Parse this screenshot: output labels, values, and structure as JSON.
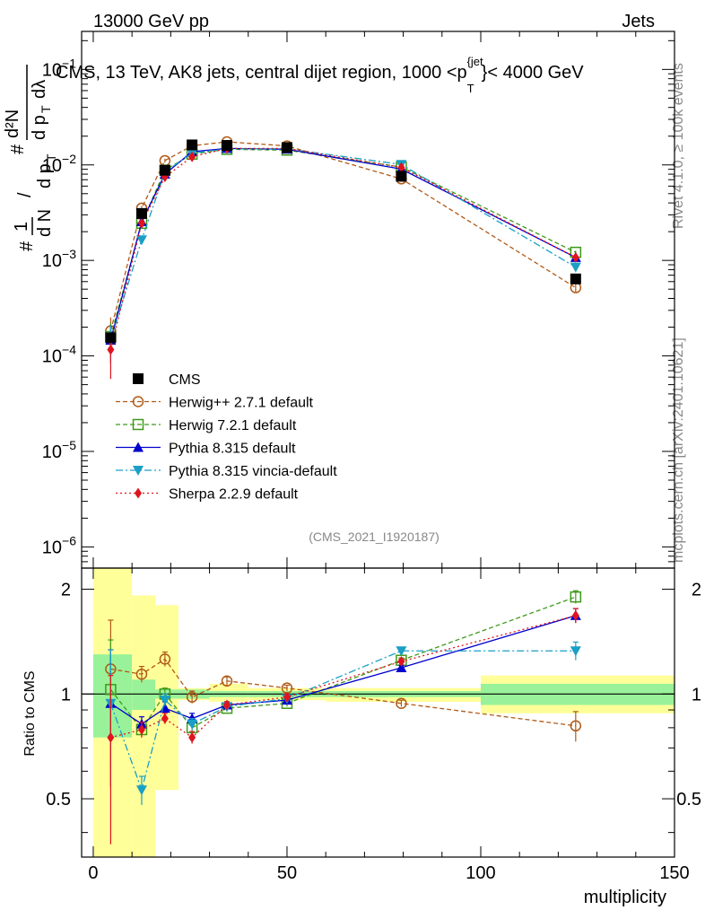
{
  "header": {
    "energy": "13000 GeV pp",
    "process": "Jets"
  },
  "side": {
    "rivet": "Rivet 4.1.0, ≥ 100k events",
    "mcplots": "mcplots.cern.ch [arXiv:2401.10621]"
  },
  "analysis_id": "(CMS_2021_I1920187)",
  "chart_data": {
    "type": "line",
    "title": "CMS, 13 TeV, AK8 jets, central dijet region, 1000 <p_T^{jet}< 4000 GeV",
    "title_parts": {
      "main": "CMS, 13 TeV, AK8 jets, central dijet region, 1000 <p",
      "sub": "T",
      "sup": "{jet",
      "tail": "}< 4000 GeV"
    },
    "xlabel": "multiplicity",
    "ylabel": "1/dN/dp_T  d²N/dp_T dλ",
    "ylabel_parts": {
      "hash": "#",
      "one": "1",
      "dN": "d N",
      "slash": "/",
      "dpT": "d p",
      "T": "T",
      "d2N": "d²N",
      "dlam": "dλ"
    },
    "ratio_ylabel": "Ratio to CMS",
    "xlim": [
      -3,
      150
    ],
    "ylim": [
      6e-07,
      0.25
    ],
    "yscale": "log",
    "ratio_ylim": [
      0.34,
      2.3
    ],
    "x_ticks": [
      0,
      50,
      100,
      150
    ],
    "y_ticks": [
      {
        "value": 1e-06,
        "base": "10",
        "exp": "−6"
      },
      {
        "value": 1e-05,
        "base": "10",
        "exp": "−5"
      },
      {
        "value": 0.0001,
        "base": "10",
        "exp": "−4"
      },
      {
        "value": 0.001,
        "base": "10",
        "exp": "−3"
      },
      {
        "value": 0.01,
        "base": "10",
        "exp": "−2"
      },
      {
        "value": 0.1,
        "base": "10",
        "exp": "−1"
      }
    ],
    "ratio_ticks": [
      {
        "value": 0.5,
        "label": "0.5"
      },
      {
        "value": 1,
        "label": "1"
      },
      {
        "value": 2,
        "label": "2"
      }
    ],
    "x": [
      4.5,
      12.5,
      18.5,
      25.5,
      34.5,
      50,
      79.5,
      124.5
    ],
    "bin_edges": [
      0,
      10,
      16,
      22,
      30,
      40,
      60,
      100,
      150
    ],
    "data": {
      "name": "CMS",
      "values": [
        0.000155,
        0.0031,
        0.0088,
        0.0162,
        0.016,
        0.0152,
        0.0076,
        0.00064
      ],
      "stat_band": [
        [
          0.75,
          1.3
        ],
        [
          0.9,
          1.1
        ],
        [
          0.97,
          1.03
        ],
        [
          0.97,
          1.03
        ],
        [
          0.98,
          1.02
        ],
        [
          0.98,
          1.02
        ],
        [
          0.98,
          1.02
        ],
        [
          0.93,
          1.07
        ]
      ],
      "total_band": [
        [
          0.34,
          2.3
        ],
        [
          0.34,
          1.92
        ],
        [
          0.53,
          1.8
        ],
        [
          0.96,
          1.04
        ],
        [
          0.95,
          1.07
        ],
        [
          0.96,
          1.04
        ],
        [
          0.95,
          1.04
        ],
        [
          0.88,
          1.13
        ]
      ]
    },
    "series": [
      {
        "name": "Herwig++ 2.7.1 default",
        "color": "#b05a17",
        "marker": "circle-open",
        "dash": "5,3",
        "ratio": [
          1.18,
          1.14,
          1.26,
          0.98,
          1.09,
          1.04,
          0.94,
          0.81
        ],
        "ratio_err": [
          0.45,
          0.06,
          0.06,
          0.04,
          0.03,
          0.02,
          0.02,
          0.08
        ]
      },
      {
        "name": "Herwig 7.2.1 default",
        "color": "#3e9a19",
        "marker": "square-open",
        "dash": "5,3",
        "ratio": [
          1.03,
          0.79,
          1.0,
          0.8,
          0.91,
          0.94,
          1.25,
          1.9
        ],
        "ratio_err": [
          0.4,
          0.04,
          0.04,
          0.03,
          0.02,
          0.02,
          0.02,
          0.08
        ]
      },
      {
        "name": "Pythia 8.315 default",
        "color": "#0000cc",
        "marker": "triangle-up",
        "dash": "",
        "ratio": [
          0.94,
          0.82,
          0.91,
          0.85,
          0.93,
          0.96,
          1.19,
          1.68
        ],
        "ratio_err": [
          0.4,
          0.04,
          0.04,
          0.03,
          0.02,
          0.02,
          0.02,
          0.08
        ]
      },
      {
        "name": "Pythia 8.315 vincia-default",
        "color": "#1a9fc6",
        "marker": "triangle-down",
        "dash": "8,3,2,3",
        "ratio": [
          0.94,
          0.53,
          0.96,
          0.82,
          0.92,
          0.97,
          1.33,
          1.33
        ],
        "ratio_err": [
          0.4,
          0.05,
          0.04,
          0.03,
          0.02,
          0.02,
          0.02,
          0.08
        ]
      },
      {
        "name": "Sherpa 2.2.9 default",
        "color": "#e0141e",
        "marker": "diamond",
        "dash": "2,3",
        "ratio": [
          0.75,
          0.79,
          0.85,
          0.75,
          0.93,
          0.98,
          1.24,
          1.68
        ],
        "ratio_err": [
          0.38,
          0.04,
          0.03,
          0.03,
          0.02,
          0.02,
          0.02,
          0.08
        ]
      }
    ]
  }
}
